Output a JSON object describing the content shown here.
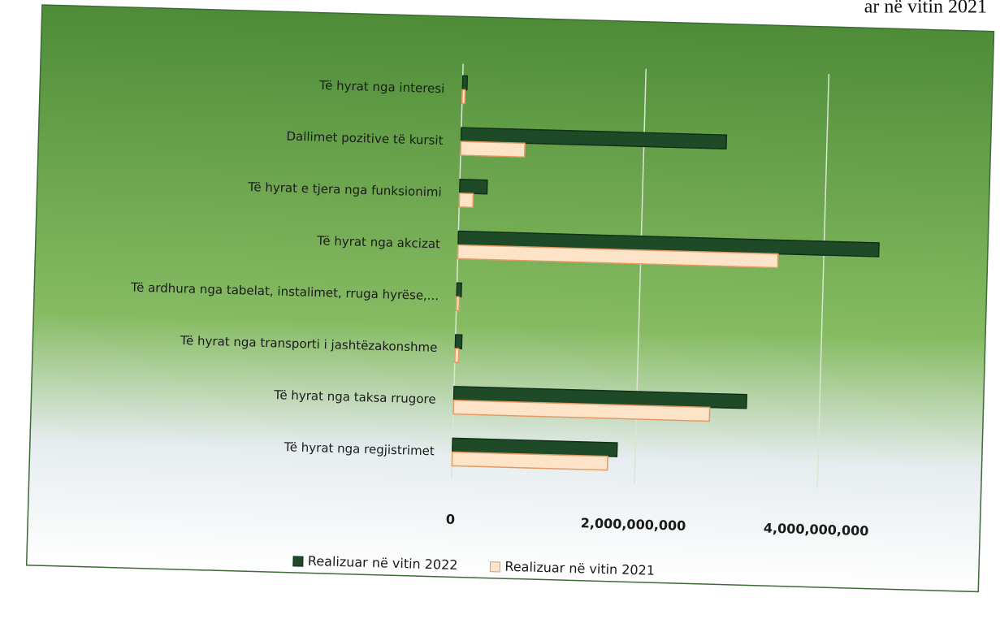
{
  "chart_data": {
    "type": "hbar",
    "title": "ar në vitin 2021",
    "categories": [
      "Të hyrat nga interesi",
      "Dallimet pozitive të kursit",
      "Të hyrat e tjera nga funksionimi",
      "Të hyrat nga akcizat",
      "Të ardhura nga tabelat, instalimet, rruga hyrëse,...",
      "Të hyrat nga transporti i jashtëzakonshme",
      "Të hyrat nga taksa rrugore",
      "Të hyrat nga regjistrimet"
    ],
    "series": [
      {
        "name": "Realizuar në vitin 2022",
        "color": "#1f4a28",
        "values": [
          50000000,
          2900000000,
          300000000,
          4600000000,
          50000000,
          70000000,
          3200000000,
          1800000000
        ]
      },
      {
        "name": "Realizuar në vitin 2021",
        "color": "#fde4c8",
        "values": [
          30000000,
          700000000,
          150000000,
          3500000000,
          30000000,
          40000000,
          2800000000,
          1700000000
        ]
      }
    ],
    "xlim": [
      0,
      5000000000
    ],
    "xticks": [
      0,
      {
        "value": 2000000000,
        "label": "2,000,000,000"
      },
      {
        "value": 4000000000,
        "label": "4,000,000,000"
      }
    ],
    "grid": true,
    "legend": "bottom"
  }
}
